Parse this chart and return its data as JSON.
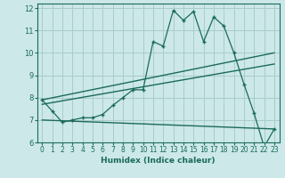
{
  "xlabel": "Humidex (Indice chaleur)",
  "bg_color": "#cce8e8",
  "grid_color": "#aacccc",
  "line_color": "#1a6b5a",
  "xlim": [
    -0.5,
    23.5
  ],
  "ylim": [
    6,
    12.2
  ],
  "xticks": [
    0,
    1,
    2,
    3,
    4,
    5,
    6,
    7,
    8,
    9,
    10,
    11,
    12,
    13,
    14,
    15,
    16,
    17,
    18,
    19,
    20,
    21,
    22,
    23
  ],
  "yticks": [
    6,
    7,
    8,
    9,
    10,
    11,
    12
  ],
  "main_line_x": [
    0,
    1,
    2,
    3,
    4,
    5,
    6,
    7,
    8,
    9,
    10,
    11,
    12,
    13,
    14,
    15,
    16,
    17,
    18,
    19,
    20,
    21,
    22,
    23
  ],
  "main_line_y": [
    7.9,
    7.4,
    6.9,
    7.0,
    7.1,
    7.1,
    7.25,
    7.65,
    8.0,
    8.35,
    8.35,
    10.5,
    10.3,
    11.9,
    11.45,
    11.85,
    10.5,
    11.6,
    11.2,
    10.0,
    8.6,
    7.3,
    5.8,
    6.6
  ],
  "upper_line_x": [
    0,
    23
  ],
  "upper_line_y": [
    7.9,
    10.0
  ],
  "mid_line_x": [
    0,
    23
  ],
  "mid_line_y": [
    7.7,
    9.5
  ],
  "lower_line_x": [
    0,
    23
  ],
  "lower_line_y": [
    7.0,
    6.6
  ],
  "xlabel_fontsize": 6.5,
  "tick_fontsize": 5.5,
  "ytick_fontsize": 6.0
}
